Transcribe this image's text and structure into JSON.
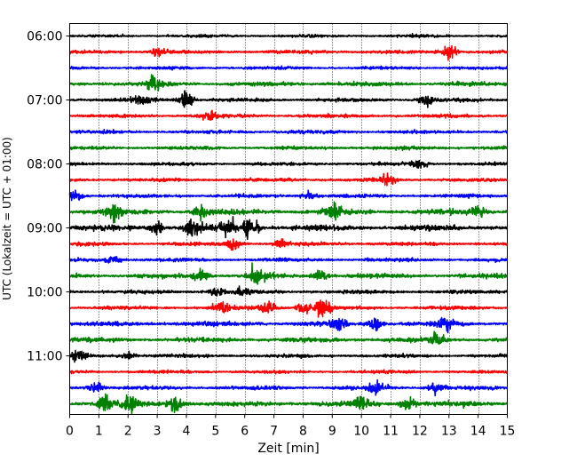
{
  "chart_data": {
    "type": "line",
    "title": "",
    "xlabel": "Zeit  [min]",
    "ylabel": "UTC (Lokalzeit = UTC + 01:00)",
    "xlim": [
      0,
      15
    ],
    "xticks": [
      0,
      1,
      2,
      3,
      4,
      5,
      6,
      7,
      8,
      9,
      10,
      11,
      12,
      13,
      14,
      15
    ],
    "yticks": [
      "06:00",
      "07:00",
      "08:00",
      "09:00",
      "10:00",
      "11:00"
    ],
    "grid": "vertical dotted at each minute",
    "trace_interval_min": 15,
    "trace_colors": [
      "#000000",
      "#ff0000",
      "#0000ff",
      "#008000"
    ],
    "traces": [
      {
        "start": "06:00",
        "color": "#000000",
        "amplitude": 0.8,
        "events": []
      },
      {
        "start": "06:15",
        "color": "#ff0000",
        "amplitude": 1.0,
        "events": [
          {
            "t": 3.0,
            "a": 2.0
          },
          {
            "t": 13.0,
            "a": 3.5
          }
        ]
      },
      {
        "start": "06:30",
        "color": "#0000ff",
        "amplitude": 0.9,
        "events": []
      },
      {
        "start": "06:45",
        "color": "#008000",
        "amplitude": 1.2,
        "events": [
          {
            "t": 2.9,
            "a": 4.0
          }
        ]
      },
      {
        "start": "07:00",
        "color": "#000000",
        "amplitude": 1.0,
        "events": [
          {
            "t": 2.5,
            "a": 3.0
          },
          {
            "t": 4.0,
            "a": 4.5
          },
          {
            "t": 12.2,
            "a": 3.0
          }
        ]
      },
      {
        "start": "07:15",
        "color": "#ff0000",
        "amplitude": 1.0,
        "events": [
          {
            "t": 4.8,
            "a": 2.0
          }
        ]
      },
      {
        "start": "07:30",
        "color": "#0000ff",
        "amplitude": 1.0,
        "events": []
      },
      {
        "start": "07:45",
        "color": "#008000",
        "amplitude": 1.0,
        "events": []
      },
      {
        "start": "08:00",
        "color": "#000000",
        "amplitude": 0.9,
        "events": [
          {
            "t": 12.0,
            "a": 2.0
          }
        ]
      },
      {
        "start": "08:15",
        "color": "#ff0000",
        "amplitude": 1.0,
        "events": [
          {
            "t": 10.9,
            "a": 3.0
          }
        ]
      },
      {
        "start": "08:30",
        "color": "#0000ff",
        "amplitude": 1.0,
        "events": [
          {
            "t": 0.2,
            "a": 2.5
          },
          {
            "t": 8.2,
            "a": 2.0
          }
        ]
      },
      {
        "start": "08:45",
        "color": "#008000",
        "amplitude": 1.5,
        "events": [
          {
            "t": 1.5,
            "a": 4.5
          },
          {
            "t": 4.5,
            "a": 3.0
          },
          {
            "t": 9.0,
            "a": 3.5
          },
          {
            "t": 14.0,
            "a": 3.5
          }
        ]
      },
      {
        "start": "09:00",
        "color": "#000000",
        "amplitude": 1.6,
        "events": [
          {
            "t": 3.0,
            "a": 3.0
          },
          {
            "t": 4.2,
            "a": 3.5
          },
          {
            "t": 5.4,
            "a": 4.0
          },
          {
            "t": 6.2,
            "a": 5.0
          }
        ]
      },
      {
        "start": "09:15",
        "color": "#ff0000",
        "amplitude": 1.0,
        "events": [
          {
            "t": 5.6,
            "a": 3.0
          },
          {
            "t": 7.2,
            "a": 2.0
          }
        ]
      },
      {
        "start": "09:30",
        "color": "#0000ff",
        "amplitude": 1.0,
        "events": [
          {
            "t": 1.5,
            "a": 2.0
          }
        ]
      },
      {
        "start": "09:45",
        "color": "#008000",
        "amplitude": 1.3,
        "events": [
          {
            "t": 4.5,
            "a": 3.0
          },
          {
            "t": 6.4,
            "a": 4.5
          },
          {
            "t": 8.6,
            "a": 3.0
          }
        ]
      },
      {
        "start": "10:00",
        "color": "#000000",
        "amplitude": 1.1,
        "events": [
          {
            "t": 5.0,
            "a": 2.5
          },
          {
            "t": 6.0,
            "a": 2.5
          }
        ]
      },
      {
        "start": "10:15",
        "color": "#ff0000",
        "amplitude": 1.0,
        "events": [
          {
            "t": 5.2,
            "a": 3.0
          },
          {
            "t": 6.8,
            "a": 3.0
          },
          {
            "t": 8.0,
            "a": 2.5
          },
          {
            "t": 8.7,
            "a": 5.5
          }
        ]
      },
      {
        "start": "10:30",
        "color": "#0000ff",
        "amplitude": 1.4,
        "events": [
          {
            "t": 9.2,
            "a": 3.0
          },
          {
            "t": 10.5,
            "a": 3.5
          },
          {
            "t": 12.9,
            "a": 3.5
          }
        ]
      },
      {
        "start": "10:45",
        "color": "#008000",
        "amplitude": 1.3,
        "events": [
          {
            "t": 12.6,
            "a": 3.5
          }
        ]
      },
      {
        "start": "11:00",
        "color": "#000000",
        "amplitude": 1.0,
        "events": [
          {
            "t": 0.3,
            "a": 3.0
          },
          {
            "t": 2.0,
            "a": 2.0
          }
        ]
      },
      {
        "start": "11:15",
        "color": "#ff0000",
        "amplitude": 0.9,
        "events": []
      },
      {
        "start": "11:30",
        "color": "#0000ff",
        "amplitude": 1.1,
        "events": [
          {
            "t": 0.9,
            "a": 3.0
          },
          {
            "t": 10.5,
            "a": 3.0
          },
          {
            "t": 12.5,
            "a": 2.5
          }
        ]
      },
      {
        "start": "11:45",
        "color": "#008000",
        "amplitude": 1.5,
        "events": [
          {
            "t": 1.2,
            "a": 4.5
          },
          {
            "t": 2.1,
            "a": 4.5
          },
          {
            "t": 3.6,
            "a": 4.0
          },
          {
            "t": 10.0,
            "a": 3.0
          },
          {
            "t": 11.6,
            "a": 3.0
          }
        ]
      }
    ]
  }
}
